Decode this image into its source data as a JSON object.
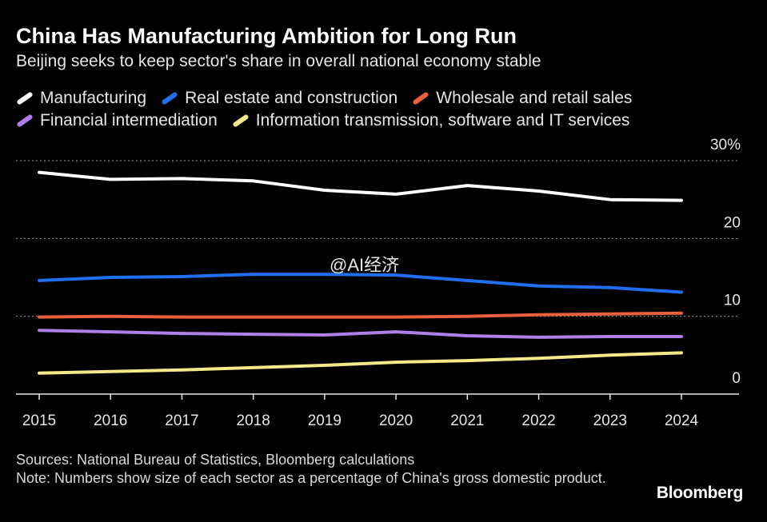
{
  "header": {
    "title": "China Has Manufacturing Ambition for Long Run",
    "subtitle": "Beijing seeks to keep sector's share in overall national economy stable"
  },
  "footer": {
    "sources": "Sources: National Bureau of Statistics, Bloomberg calculations",
    "note": "Note: Numbers show size of each sector as a percentage of China's gross domestic product.",
    "brand": "Bloomberg"
  },
  "watermark": "@AI经济",
  "chart_data": {
    "type": "line",
    "title": "China Has Manufacturing Ambition for Long Run",
    "subtitle": "Beijing seeks to keep sector's share in overall national economy stable",
    "xlabel": "",
    "ylabel": "",
    "x": [
      2015,
      2016,
      2017,
      2018,
      2019,
      2020,
      2021,
      2022,
      2023,
      2024
    ],
    "ylim": [
      0,
      30
    ],
    "yticks": [
      {
        "value": 0,
        "label": "0"
      },
      {
        "value": 10,
        "label": "10"
      },
      {
        "value": 20,
        "label": "20"
      },
      {
        "value": 30,
        "label": "30%"
      }
    ],
    "grid": "horizontal dotted",
    "legend_position": "top",
    "series": [
      {
        "name": "Manufacturing",
        "color": "#ffffff",
        "values": [
          28.5,
          27.6,
          27.7,
          27.4,
          26.2,
          25.7,
          26.8,
          26.1,
          25.0,
          24.9
        ]
      },
      {
        "name": "Real estate and construction",
        "color": "#1f6ff0",
        "values": [
          14.6,
          15.0,
          15.1,
          15.4,
          15.4,
          15.3,
          14.6,
          13.9,
          13.7,
          13.1
        ]
      },
      {
        "name": "Wholesale and retail sales",
        "color": "#e8603c",
        "values": [
          9.9,
          10.0,
          9.9,
          9.9,
          9.9,
          9.9,
          10.0,
          10.2,
          10.3,
          10.4
        ]
      },
      {
        "name": "Financial intermediation",
        "color": "#b07ee8",
        "values": [
          8.2,
          8.0,
          7.8,
          7.7,
          7.6,
          8.0,
          7.5,
          7.3,
          7.4,
          7.4
        ]
      },
      {
        "name": "Information transmission, software and IT services",
        "color": "#f5e889",
        "values": [
          2.7,
          2.9,
          3.1,
          3.4,
          3.7,
          4.1,
          4.3,
          4.6,
          5.0,
          5.3
        ]
      }
    ]
  }
}
